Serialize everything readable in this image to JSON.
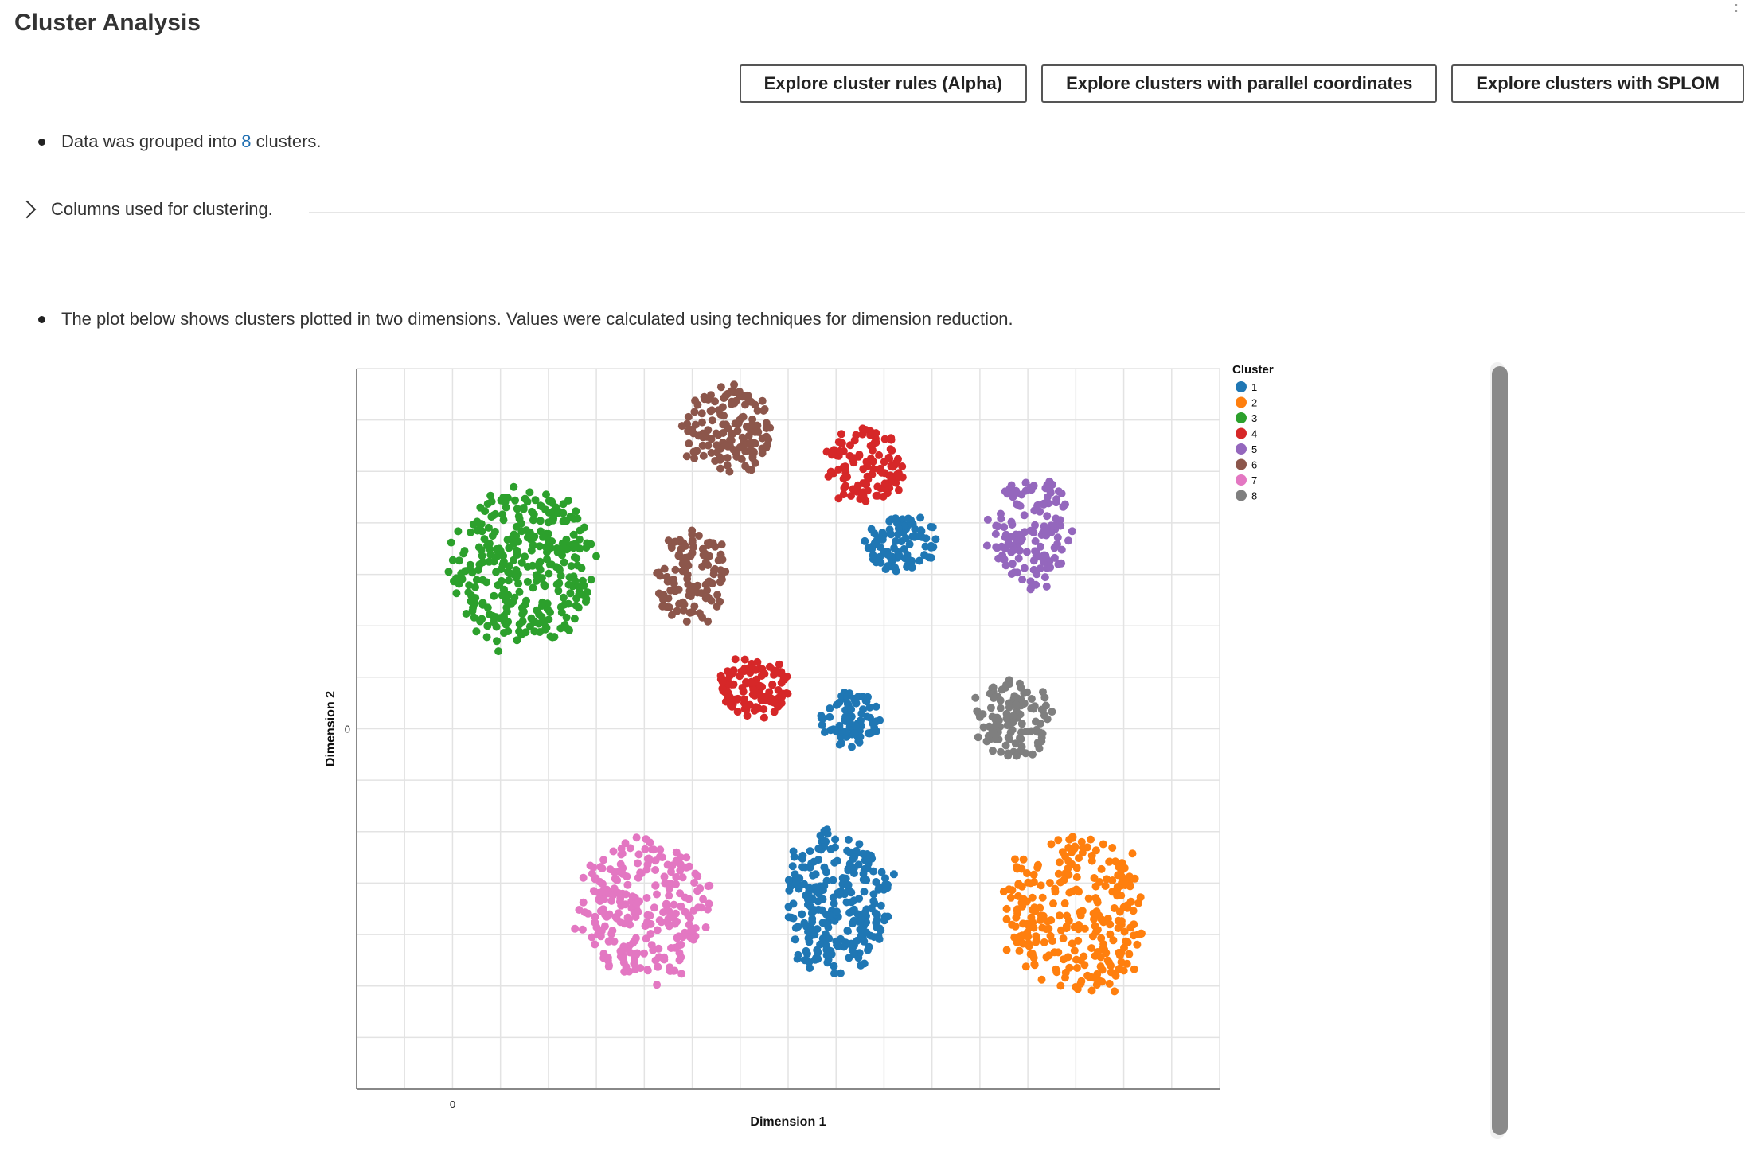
{
  "header": {
    "title": "Cluster Analysis"
  },
  "toolbar": {
    "rules_label": "Explore cluster rules (Alpha)",
    "parallel_label": "Explore clusters with parallel coordinates",
    "splom_label": "Explore clusters with SPLOM"
  },
  "summary": {
    "prefix": "Data was grouped into ",
    "count": "8",
    "suffix": " clusters."
  },
  "columns_section": {
    "label": "Columns used for clustering."
  },
  "plot_note": {
    "text": "The plot below shows clusters plotted in two dimensions. Values were calculated using techniques for dimension reduction."
  },
  "chart_data": {
    "type": "scatter",
    "title": "",
    "xlabel": "Dimension 1",
    "ylabel": "Dimension 2",
    "x_ticks": [
      0
    ],
    "y_ticks": [
      0
    ],
    "xlim": [
      -2,
      16
    ],
    "ylim": [
      -7,
      7
    ],
    "grid": true,
    "legend": {
      "title": "Cluster",
      "position": "right"
    },
    "series": [
      {
        "name": "1",
        "color": "#1f77b4",
        "groups": [
          {
            "cx": 9.4,
            "cy": 3.6,
            "rx": 0.8,
            "ry": 0.6,
            "n": 90
          },
          {
            "cx": 8.3,
            "cy": 0.2,
            "rx": 0.7,
            "ry": 0.6,
            "n": 80
          },
          {
            "cx": 8.0,
            "cy": -3.4,
            "rx": 1.2,
            "ry": 1.5,
            "n": 260
          }
        ]
      },
      {
        "name": "2",
        "color": "#ff7f0e",
        "groups": [
          {
            "cx": 13.0,
            "cy": -3.6,
            "rx": 1.6,
            "ry": 1.6,
            "n": 280
          }
        ]
      },
      {
        "name": "3",
        "color": "#2ca02c",
        "groups": [
          {
            "cx": 1.5,
            "cy": 3.1,
            "rx": 1.6,
            "ry": 1.6,
            "n": 330
          }
        ]
      },
      {
        "name": "4",
        "color": "#d62728",
        "groups": [
          {
            "cx": 8.6,
            "cy": 5.1,
            "rx": 0.9,
            "ry": 0.8,
            "n": 110
          },
          {
            "cx": 6.3,
            "cy": 0.8,
            "rx": 0.8,
            "ry": 0.6,
            "n": 110
          }
        ]
      },
      {
        "name": "5",
        "color": "#9467bd",
        "groups": [
          {
            "cx": 12.1,
            "cy": 3.8,
            "rx": 0.9,
            "ry": 1.2,
            "n": 140
          }
        ]
      },
      {
        "name": "6",
        "color": "#8c564b",
        "groups": [
          {
            "cx": 5.7,
            "cy": 5.8,
            "rx": 1.0,
            "ry": 0.9,
            "n": 140
          },
          {
            "cx": 5.0,
            "cy": 2.9,
            "rx": 0.8,
            "ry": 1.0,
            "n": 110
          }
        ]
      },
      {
        "name": "7",
        "color": "#e377c2",
        "groups": [
          {
            "cx": 4.0,
            "cy": -3.5,
            "rx": 1.5,
            "ry": 1.5,
            "n": 250
          }
        ]
      },
      {
        "name": "8",
        "color": "#7f7f7f",
        "groups": [
          {
            "cx": 11.7,
            "cy": 0.2,
            "rx": 0.9,
            "ry": 0.8,
            "n": 110
          }
        ]
      }
    ]
  }
}
